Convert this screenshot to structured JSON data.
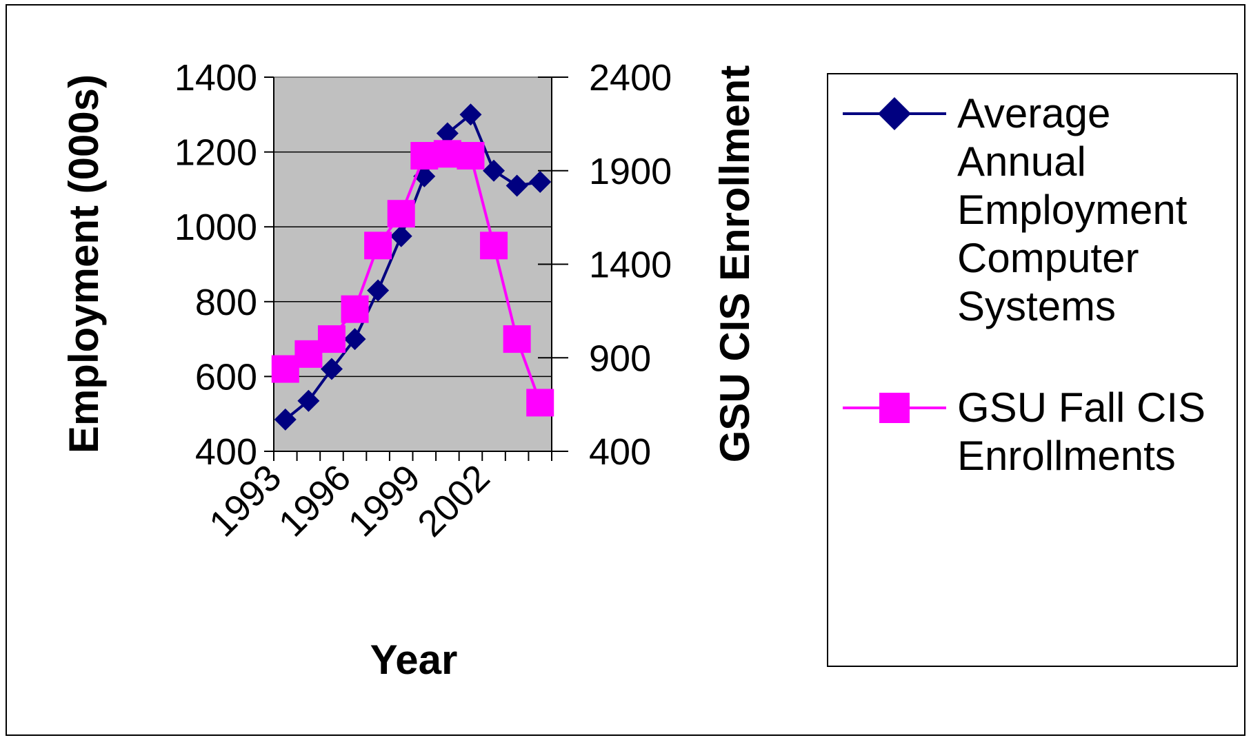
{
  "chart_data": {
    "type": "line",
    "x": [
      1993,
      1994,
      1995,
      1996,
      1997,
      1998,
      1999,
      2000,
      2001,
      2002,
      2003,
      2004
    ],
    "x_tick_labels": [
      "1993",
      "1996",
      "1999",
      "2002"
    ],
    "xlabel": "Year",
    "ylabel_left": "Employment (000s)",
    "ylabel_right": "GSU CIS Enrollment",
    "ylim_left": [
      400,
      1400
    ],
    "ylim_right": [
      400,
      2400
    ],
    "y_ticks_left": [
      "400",
      "600",
      "800",
      "1000",
      "1200",
      "1400"
    ],
    "y_ticks_right": [
      "400",
      "900",
      "1400",
      "1900",
      "2400"
    ],
    "plot_background": "#c0c0c0",
    "grid": true,
    "legend_position": "right",
    "series": [
      {
        "name_lines": [
          "Average",
          "Annual",
          "Employment",
          "Computer",
          "Systems"
        ],
        "axis": "left",
        "marker": "diamond",
        "color": "#000080",
        "values": [
          485,
          535,
          620,
          700,
          830,
          975,
          1135,
          1250,
          1300,
          1150,
          1110,
          1120
        ]
      },
      {
        "name_lines": [
          "GSU Fall CIS",
          "Enrollments"
        ],
        "axis": "right",
        "marker": "square",
        "color": "#ff00ff",
        "values": [
          840,
          920,
          1000,
          1160,
          1500,
          1670,
          1980,
          1990,
          1980,
          1500,
          1000,
          660
        ]
      }
    ]
  }
}
